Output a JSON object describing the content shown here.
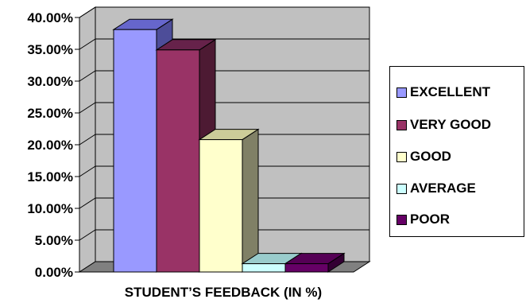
{
  "chart_data": {
    "type": "bar",
    "title": "",
    "xlabel": "STUDENT’S FEEDBACK (IN %)",
    "ylabel": "",
    "ylim": [
      0,
      40
    ],
    "yticks": [
      "0.00%",
      "5.00%",
      "10.00%",
      "15.00%",
      "20.00%",
      "25.00%",
      "30.00%",
      "35.00%",
      "40.00%"
    ],
    "grid": true,
    "legend_position": "right",
    "style": "3d-clustered-column",
    "wall_color": "#c0c0c0",
    "series": [
      {
        "name": "EXCELLENT",
        "value": 38.1,
        "color": "#9999ff",
        "side_color": "#4d4d99",
        "top_color": "#6666cc"
      },
      {
        "name": "VERY GOOD",
        "value": 34.9,
        "color": "#993366",
        "side_color": "#4d1a33",
        "top_color": "#66224a"
      },
      {
        "name": "GOOD",
        "value": 20.8,
        "color": "#ffffcc",
        "side_color": "#808066",
        "top_color": "#cccc99"
      },
      {
        "name": "AVERAGE",
        "value": 1.3,
        "color": "#ccffff",
        "side_color": "#668080",
        "top_color": "#99cccc"
      },
      {
        "name": "POOR",
        "value": 1.3,
        "color": "#660066",
        "side_color": "#330033",
        "top_color": "#550055"
      }
    ]
  }
}
